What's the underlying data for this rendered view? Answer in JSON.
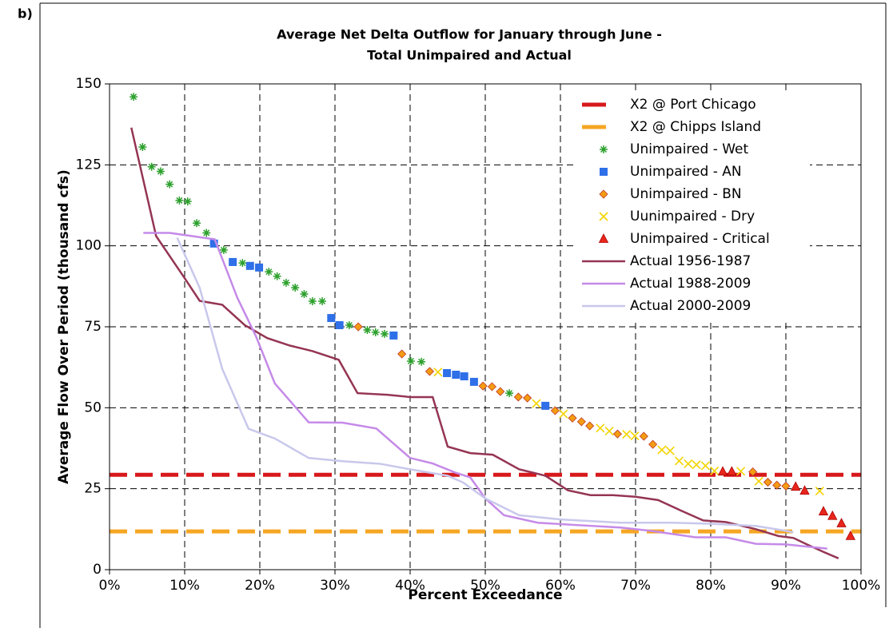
{
  "panel_label": "b)",
  "chart_data": {
    "type": "line",
    "title": [
      "Average Net Delta Outflow for January through June -",
      "Total Unimpaired and Actual"
    ],
    "x_label": "Percent Exceedance",
    "y_label": "Average Flow Over Period (thousand cfs)",
    "xlim": [
      0,
      100
    ],
    "ylim": [
      0,
      150
    ],
    "xticks": [
      {
        "value": 0,
        "label": "0%"
      },
      {
        "value": 10,
        "label": "10%"
      },
      {
        "value": 20,
        "label": "20%"
      },
      {
        "value": 30,
        "label": "30%"
      },
      {
        "value": 40,
        "label": "40%"
      },
      {
        "value": 50,
        "label": "50%"
      },
      {
        "value": 60,
        "label": "60%"
      },
      {
        "value": 70,
        "label": "70%"
      },
      {
        "value": 80,
        "label": "80%"
      },
      {
        "value": 90,
        "label": "90%"
      },
      {
        "value": 100,
        "label": "100%"
      }
    ],
    "yticks": [
      0,
      25,
      50,
      75,
      100,
      125,
      150
    ],
    "grid": true,
    "legend": "upper right",
    "series": [
      {
        "name": "X2 @ Port Chicago",
        "color": "#d7191c",
        "style": "dashed",
        "x": [
          0,
          100
        ],
        "values": [
          29.3,
          29.3
        ]
      },
      {
        "name": "X2 @ Chipps Island",
        "color": "#f5a623",
        "style": "dashed",
        "x": [
          0,
          100
        ],
        "values": [
          11.8,
          11.8
        ]
      },
      {
        "name": "Unimpaired - Wet",
        "color": "#2ca02c",
        "marker": "asterisk",
        "x": [
          3.2,
          4.4,
          5.6,
          6.8,
          8.0,
          9.3,
          10.4,
          11.6,
          12.9,
          15.2,
          17.7,
          21.2,
          22.3,
          23.5,
          24.7,
          25.9,
          27.0,
          28.3,
          31.9,
          34.3,
          35.4,
          36.6,
          40.1,
          41.5,
          53.2
        ],
        "values": [
          146,
          130.5,
          124.4,
          123,
          119,
          114,
          113.7,
          107,
          104,
          98.7,
          94.7,
          92,
          90.6,
          88.6,
          87.1,
          85.1,
          82.9,
          82.9,
          75.5,
          74,
          73.3,
          72.8,
          64.4,
          64.2,
          54.5
        ]
      },
      {
        "name": "Unimpaired - AN",
        "color": "#2f6fe8",
        "marker": "square",
        "x": [
          13.9,
          16.4,
          18.7,
          19.9,
          29.5,
          30.6,
          37.8,
          44.9,
          46.1,
          47.2,
          48.5,
          58.0
        ],
        "values": [
          100.7,
          95,
          93.8,
          93.3,
          77.7,
          75.5,
          72.3,
          60.7,
          60.2,
          59.7,
          58,
          50.6
        ]
      },
      {
        "name": "Unimpaired - BN",
        "color": "#f39c12",
        "marker": "diamond",
        "x": [
          33.1,
          38.9,
          42.6,
          49.7,
          50.9,
          52.0,
          54.4,
          55.6,
          59.3,
          61.6,
          62.8,
          63.9,
          67.6,
          71.1,
          72.3,
          85.6,
          87.6,
          88.8,
          90.0
        ],
        "values": [
          75,
          66.6,
          61.2,
          56.7,
          56.5,
          55,
          53.3,
          53,
          49.1,
          46.8,
          45.7,
          44.4,
          41.9,
          41.2,
          38.7,
          30.2,
          27,
          26.1,
          25.8
        ]
      },
      {
        "name": "Uunimpaired - Dry",
        "color": "#f2d400",
        "marker": "cross",
        "x": [
          43.7,
          56.8,
          60.4,
          65.3,
          66.5,
          68.8,
          69.9,
          73.5,
          74.6,
          75.8,
          77.0,
          78.1,
          79.3,
          80.5,
          84.0,
          86.4,
          94.5
        ],
        "values": [
          61,
          51.3,
          48.1,
          43.7,
          42.8,
          41.8,
          41.3,
          37,
          36.7,
          33.6,
          32.7,
          32.4,
          32.1,
          30.5,
          30.4,
          27.3,
          24.3
        ]
      },
      {
        "name": "Unimpaired - Critical",
        "color": "#e8261c",
        "marker": "triangle",
        "x": [
          81.6,
          82.8,
          91.3,
          92.5,
          95.0,
          96.2,
          97.4,
          98.6
        ],
        "values": [
          30.3,
          30.3,
          25.6,
          24.4,
          18,
          16.6,
          14.3,
          10.4
        ]
      },
      {
        "name": "Actual 1956-1987",
        "color": "#953553",
        "style": "solid",
        "x": [
          2.9,
          6.2,
          10,
          12,
          15,
          18,
          21,
          24,
          27,
          30.5,
          33,
          37,
          40,
          43,
          45,
          48,
          51,
          54.5,
          58,
          61,
          64,
          67,
          70,
          73,
          76,
          79,
          82,
          86,
          89,
          91,
          93,
          95,
          97
        ],
        "values": [
          136.5,
          103,
          90,
          83,
          81.8,
          75.5,
          71.5,
          69.2,
          67.5,
          64.8,
          54.5,
          54,
          53.3,
          53.3,
          38,
          36,
          35.5,
          31,
          29,
          24.5,
          23,
          23,
          22.5,
          21.5,
          18.3,
          15.2,
          14.7,
          12.5,
          10.4,
          9.8,
          7.6,
          5.5,
          3.5
        ]
      },
      {
        "name": "Actual 1988-2009",
        "color": "#c58ae8",
        "style": "solid",
        "x": [
          4.5,
          8,
          11,
          14,
          17,
          19.5,
          22,
          26.5,
          31,
          35.5,
          40,
          43,
          46,
          48,
          50,
          52.5,
          57,
          62,
          68,
          72,
          78,
          82,
          86,
          90,
          95.5
        ],
        "values": [
          104,
          104,
          103,
          102,
          84,
          72,
          57.5,
          45.5,
          45.4,
          43.6,
          34.5,
          32.8,
          30,
          28.5,
          22,
          16.8,
          14.5,
          13.8,
          13,
          12,
          10,
          10,
          8,
          7.8,
          6.5
        ]
      },
      {
        "name": "Actual 2000-2009",
        "color": "#c8c8ec",
        "style": "solid",
        "x": [
          9,
          12,
          15,
          18.5,
          22,
          26.5,
          31,
          36,
          40,
          45,
          47,
          50,
          54.5,
          60,
          68,
          75,
          80,
          86,
          90,
          91
        ],
        "values": [
          102.5,
          87,
          62,
          43.5,
          40.5,
          34.5,
          33.5,
          32.7,
          31,
          29,
          27,
          22,
          16.8,
          15.5,
          14.5,
          14.5,
          14.2,
          13.5,
          12,
          11.5
        ]
      }
    ]
  }
}
